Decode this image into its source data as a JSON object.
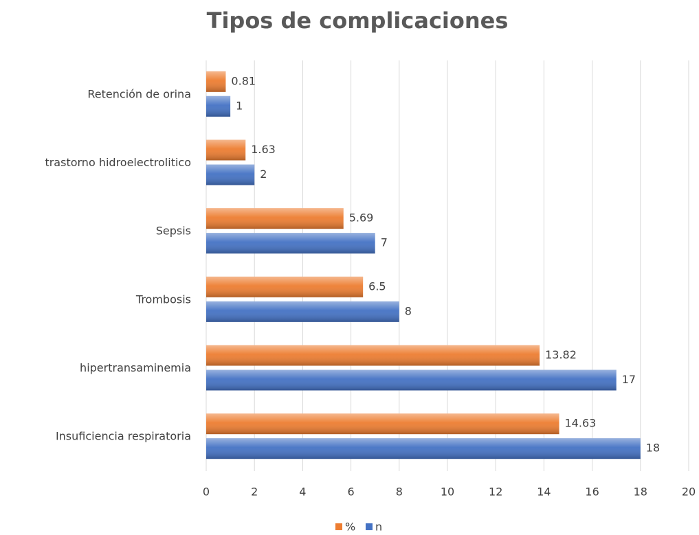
{
  "chart_data": {
    "type": "bar",
    "orientation": "horizontal",
    "title": "Tipos de complicaciones",
    "categories": [
      "Retención de orina",
      "trastorno hidroelectrolitico",
      "Sepsis",
      "Trombosis",
      "hipertransaminemia",
      "Insuficiencia respiratoria"
    ],
    "series": [
      {
        "name": "%",
        "color": "#ed7d31",
        "values": [
          0.81,
          1.63,
          5.69,
          6.5,
          13.82,
          14.63
        ]
      },
      {
        "name": "n",
        "color": "#4472c4",
        "values": [
          1,
          2,
          7,
          8,
          17,
          18
        ]
      }
    ],
    "xlim": [
      0,
      20
    ],
    "xticks": [
      0,
      2,
      4,
      6,
      8,
      10,
      12,
      14,
      16,
      18,
      20
    ],
    "grid": true,
    "legend": "bottom"
  }
}
